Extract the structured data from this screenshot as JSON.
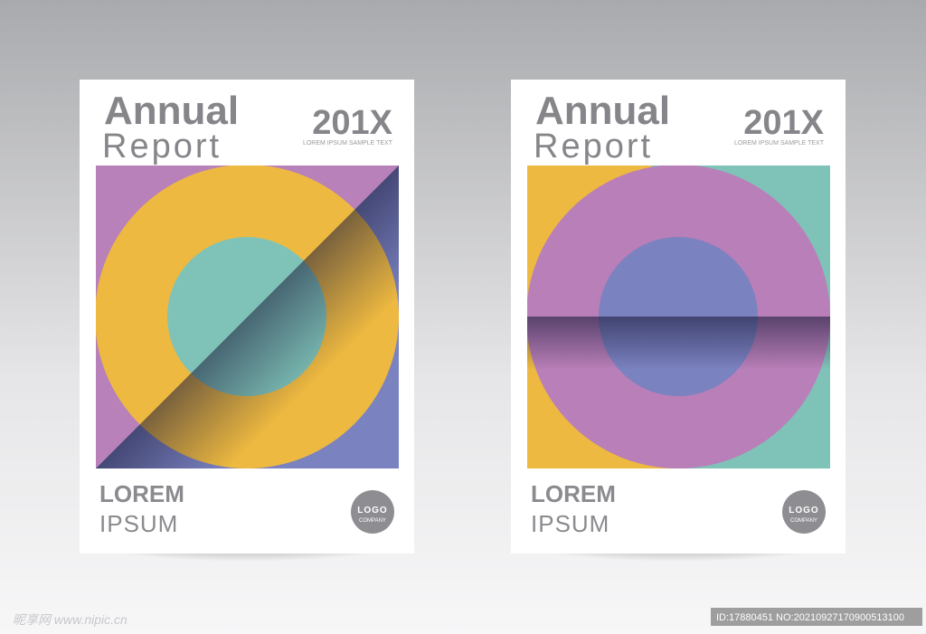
{
  "covers": [
    {
      "title": "Annual",
      "subtitle": "Report",
      "year": "201X",
      "tagline": "LOREM IPSUM SAMPLE TEXT",
      "heading": "LOREM",
      "subheading": "IPSUM",
      "logo": "LOGO",
      "company": "COMPANY"
    },
    {
      "title": "Annual",
      "subtitle": "Report",
      "year": "201X",
      "tagline": "LOREM IPSUM SAMPLE TEXT",
      "heading": "LOREM",
      "subheading": "IPSUM",
      "logo": "LOGO",
      "company": "COMPANY"
    }
  ],
  "watermark": {
    "site": "昵享网 www.nipic.cn",
    "id": "ID:17880451 NO:20210927170900513100"
  }
}
